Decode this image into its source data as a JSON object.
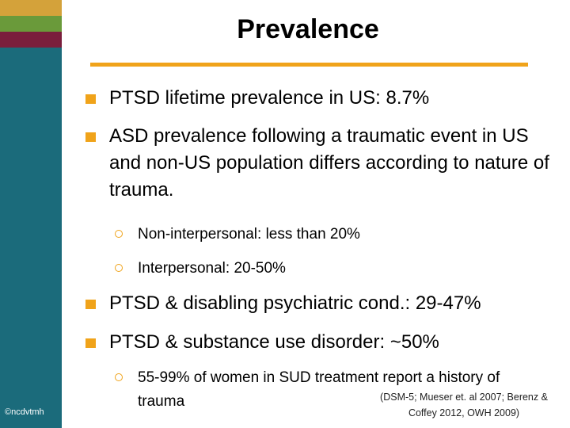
{
  "slide": {
    "title": "Prevalence",
    "copyright": "©ncdvtmh",
    "bullets": [
      {
        "text": "PTSD lifetime prevalence in US: 8.7%"
      },
      {
        "text": "ASD prevalence following a traumatic event in US and non-US population differs according to nature of trauma."
      },
      {
        "text": "PTSD & disabling psychiatric cond.: 29-47%"
      },
      {
        "text": "PTSD & substance use disorder: ~50%"
      }
    ],
    "subbullets": [
      {
        "text": "Non-interpersonal: less than 20%"
      },
      {
        "text": "Interpersonal: 20-50%"
      },
      {
        "text": "55-99% of women in SUD treatment report a history of trauma"
      }
    ],
    "citation": "(DSM-5; Mueser et. al 2007; Berenz & Coffey 2012, OWH 2009)"
  },
  "colors": {
    "sidebar": "#1b6b7b",
    "accent": "#f0a31a",
    "stripe_gold": "#d4a23a",
    "stripe_green": "#6a9a3a",
    "stripe_maroon": "#7a1e3c"
  }
}
